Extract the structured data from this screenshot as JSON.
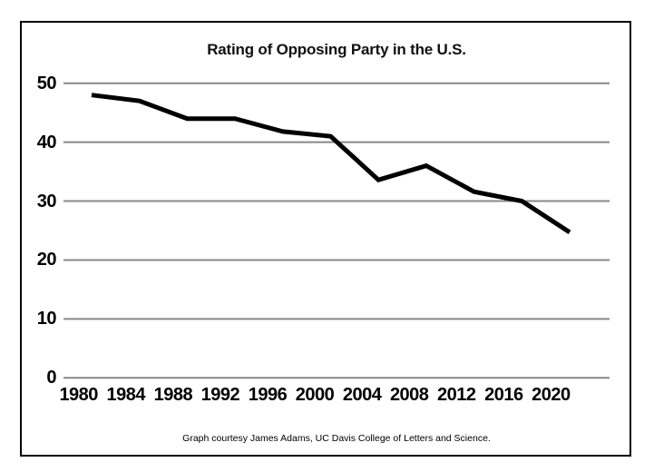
{
  "chart_data": {
    "type": "line",
    "title": "Rating of Opposing Party in the U.S.",
    "caption": "Graph courtesy James Adams, UC Davis College of Letters and Science.",
    "x": [
      1980,
      1984,
      1988,
      1992,
      1996,
      2000,
      2004,
      2008,
      2012,
      2016,
      2020
    ],
    "values": [
      48,
      47,
      44,
      44,
      41.8,
      41,
      33.6,
      36,
      31.6,
      30,
      24.7
    ],
    "x_tick_labels": [
      "1980",
      "1984",
      "1988",
      "1992",
      "1996",
      "2000",
      "2004",
      "2008",
      "2012",
      "2016",
      "2020"
    ],
    "y_ticks": [
      0,
      10,
      20,
      30,
      40,
      50
    ],
    "ylim": [
      0,
      50
    ],
    "xlabel": "",
    "ylabel": "",
    "grid": "horizontal-only",
    "legend": "none",
    "colors": {
      "line": "#000000",
      "grid": "#888888",
      "text": "#000000",
      "border": "#000000",
      "background": "#ffffff"
    }
  }
}
